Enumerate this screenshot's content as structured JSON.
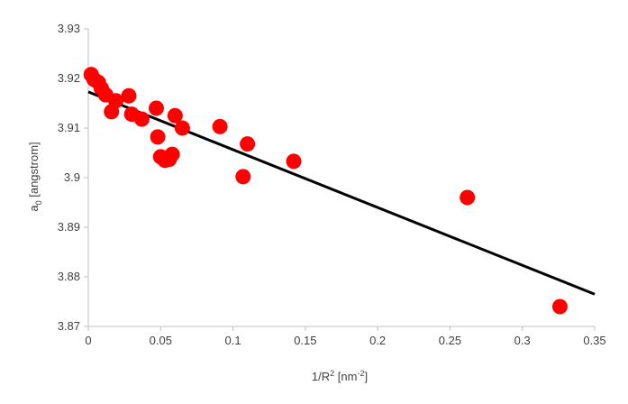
{
  "chart_data": {
    "type": "scatter",
    "xlabel": {
      "base": "1/R",
      "sup1": "2",
      "mid": " [nm",
      "sup2": "-2",
      "end": "]"
    },
    "ylabel": {
      "base": "a",
      "sub": "0",
      "rest": " [angstrom]"
    },
    "xlim": [
      0,
      0.35
    ],
    "ylim": [
      3.87,
      3.93
    ],
    "x_ticks": [
      "0",
      "0.05",
      "0.1",
      "0.15",
      "0.2",
      "0.25",
      "0.3",
      "0.35"
    ],
    "x_tick_values": [
      0,
      0.05,
      0.1,
      0.15,
      0.2,
      0.25,
      0.3,
      0.35
    ],
    "y_ticks": [
      "3.87",
      "3.88",
      "3.89",
      "3.9",
      "3.91",
      "3.92",
      "3.93"
    ],
    "y_tick_values": [
      3.87,
      3.88,
      3.89,
      3.9,
      3.91,
      3.92,
      3.93
    ],
    "grid": false,
    "legend": "none",
    "marker_color": "#ff0000",
    "line_color": "#000000",
    "points": [
      {
        "x": 0.002,
        "y": 3.9208
      },
      {
        "x": 0.004,
        "y": 3.9198
      },
      {
        "x": 0.007,
        "y": 3.9192
      },
      {
        "x": 0.009,
        "y": 3.918
      },
      {
        "x": 0.012,
        "y": 3.9167
      },
      {
        "x": 0.016,
        "y": 3.9133
      },
      {
        "x": 0.019,
        "y": 3.9155
      },
      {
        "x": 0.028,
        "y": 3.9165
      },
      {
        "x": 0.03,
        "y": 3.9128
      },
      {
        "x": 0.037,
        "y": 3.9118
      },
      {
        "x": 0.047,
        "y": 3.914
      },
      {
        "x": 0.048,
        "y": 3.9082
      },
      {
        "x": 0.05,
        "y": 3.9042
      },
      {
        "x": 0.053,
        "y": 3.9035
      },
      {
        "x": 0.056,
        "y": 3.9037
      },
      {
        "x": 0.058,
        "y": 3.9047
      },
      {
        "x": 0.06,
        "y": 3.9125
      },
      {
        "x": 0.065,
        "y": 3.91
      },
      {
        "x": 0.091,
        "y": 3.9103
      },
      {
        "x": 0.107,
        "y": 3.9002
      },
      {
        "x": 0.11,
        "y": 3.9068
      },
      {
        "x": 0.142,
        "y": 3.9033
      },
      {
        "x": 0.262,
        "y": 3.896
      },
      {
        "x": 0.326,
        "y": 3.874
      }
    ],
    "trendline": {
      "x": [
        0,
        0.35
      ],
      "y": [
        3.9173,
        3.8765
      ]
    }
  }
}
